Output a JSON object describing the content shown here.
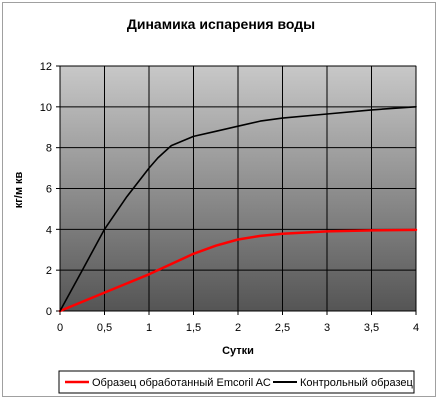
{
  "chart_data": {
    "type": "line",
    "title": "Динамика испарения воды",
    "xlabel": "Сутки",
    "ylabel": "кг/м кв",
    "xlim": [
      0,
      4
    ],
    "ylim": [
      0,
      12
    ],
    "x_ticks": [
      "0",
      "0,5",
      "1",
      "1,5",
      "2",
      "2,5",
      "3",
      "3,5",
      "4"
    ],
    "x_tick_values": [
      0,
      0.5,
      1,
      1.5,
      2,
      2.5,
      3,
      3.5,
      4
    ],
    "y_ticks": [
      "0",
      "2",
      "4",
      "6",
      "8",
      "10",
      "12"
    ],
    "y_tick_values": [
      0,
      2,
      4,
      6,
      8,
      10,
      12
    ],
    "grid": true,
    "legend_position": "bottom",
    "background_gradient": [
      "#c8c8c8",
      "#555555"
    ],
    "series": [
      {
        "name": "Образец обработанный Emcoril AC",
        "color": "#ff0000",
        "x": [
          0,
          0.5,
          1,
          1.25,
          1.5,
          1.75,
          2,
          2.25,
          2.5,
          3,
          3.5,
          4
        ],
        "y": [
          0,
          0.9,
          1.8,
          2.3,
          2.8,
          3.2,
          3.5,
          3.68,
          3.78,
          3.9,
          3.95,
          3.97
        ]
      },
      {
        "name": "Контрольный образец",
        "color": "#000000",
        "x": [
          0,
          0.25,
          0.5,
          0.75,
          1,
          1.1,
          1.25,
          1.5,
          1.75,
          2,
          2.25,
          2.5,
          3,
          3.5,
          4
        ],
        "y": [
          0,
          2.0,
          4.0,
          5.6,
          7.0,
          7.5,
          8.1,
          8.55,
          8.8,
          9.05,
          9.3,
          9.45,
          9.65,
          9.85,
          10
        ]
      }
    ]
  }
}
